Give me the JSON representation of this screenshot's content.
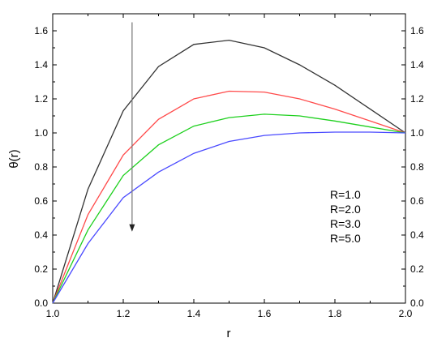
{
  "chart_data": {
    "type": "line",
    "xlabel": "r",
    "ylabel": "θ(r)",
    "xlim": [
      1.0,
      2.0
    ],
    "ylim": [
      0.0,
      1.7
    ],
    "xticks": [
      "1.0",
      "1.2",
      "1.4",
      "1.6",
      "1.8",
      "2.0"
    ],
    "yticks": [
      "0.0",
      "0.2",
      "0.4",
      "0.6",
      "0.8",
      "1.0",
      "1.2",
      "1.4",
      "1.6"
    ],
    "x": [
      1.0,
      1.1,
      1.2,
      1.3,
      1.4,
      1.5,
      1.6,
      1.7,
      1.8,
      1.9,
      2.0
    ],
    "series": [
      {
        "name": "R=1.0",
        "color": "#333333",
        "values": [
          0.0,
          0.67,
          1.13,
          1.39,
          1.52,
          1.545,
          1.5,
          1.4,
          1.28,
          1.14,
          1.0
        ]
      },
      {
        "name": "R=2.0",
        "color": "#ff4a4a",
        "values": [
          0.0,
          0.52,
          0.87,
          1.08,
          1.2,
          1.245,
          1.24,
          1.2,
          1.14,
          1.07,
          1.0
        ]
      },
      {
        "name": "R=3.0",
        "color": "#1ed01e",
        "values": [
          0.0,
          0.43,
          0.75,
          0.93,
          1.04,
          1.09,
          1.11,
          1.1,
          1.07,
          1.035,
          1.0
        ]
      },
      {
        "name": "R=5.0",
        "color": "#4a4aff",
        "values": [
          0.0,
          0.35,
          0.62,
          0.77,
          0.88,
          0.95,
          0.985,
          1.0,
          1.005,
          1.005,
          1.0
        ]
      }
    ],
    "legend": {
      "placement": "lower-right",
      "entries": [
        "R=1.0",
        "R=2.0",
        "R=3.0",
        "R=5.0"
      ]
    },
    "arrow": {
      "x": 1.225,
      "y_from": 1.65,
      "y_to": 0.42,
      "color": "#777777"
    },
    "grid": false
  }
}
